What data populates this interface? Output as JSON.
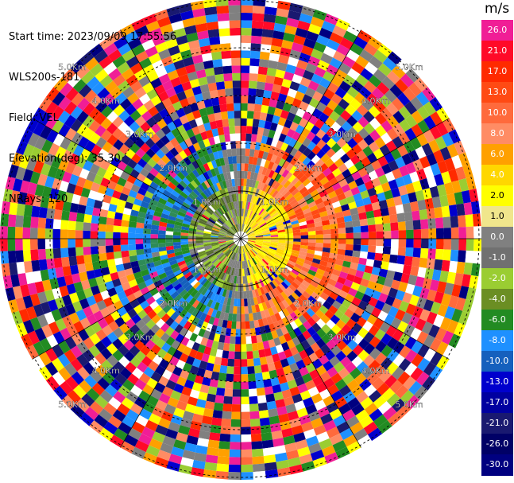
{
  "header": {
    "start_time": "Start time: 2023/09/09 17:55:56",
    "instrument": "WLS200s-181",
    "field": "Field: VEL",
    "elevation": "Elevation(deg): 35.30",
    "nrays": "NRays: 120"
  },
  "colorbar": {
    "unit": "m/s",
    "levels": [
      "26.0",
      "21.0",
      "17.0",
      "13.0",
      "10.0",
      "8.0",
      "6.0",
      "4.0",
      "2.0",
      "1.0",
      "0.0",
      "-1.0",
      "-2.0",
      "-4.0",
      "-6.0",
      "-8.0",
      "-10.0",
      "-13.0",
      "-17.0",
      "-21.0",
      "-26.0",
      "-30.0"
    ],
    "colors": [
      "#f01e96",
      "#ff0a28",
      "#ff2a00",
      "#ff4a14",
      "#ff6a3c",
      "#ff8c64",
      "#ffa000",
      "#ffd700",
      "#ffff00",
      "#f0e68c",
      "#808080",
      "#707070",
      "#9acd32",
      "#6b8e23",
      "#228b22",
      "#1e90ff",
      "#1560bd",
      "#0000cd",
      "#0000a0",
      "#191970",
      "#000066",
      "#000080"
    ]
  },
  "range_labels": [
    "1.0Km",
    "2.0Km",
    "3.0Km",
    "4.0Km",
    "5.0Km"
  ],
  "field_colors": {
    "pos_inner": [
      "#ffff00",
      "#ffea00",
      "#ffd700",
      "#ffd23c"
    ],
    "pos_outer": [
      "#ffa000",
      "#ff8c64",
      "#ff6a3c",
      "#ff4a14"
    ],
    "neg_inner": [
      "#9acd32",
      "#6b8e23",
      "#808080",
      "#556b2f"
    ],
    "neg_outer": [
      "#228b22",
      "#1e90ff",
      "#2e8b57",
      "#1560bd"
    ],
    "noise": [
      "#f01e96",
      "#ff0a28",
      "#ff2a00",
      "#ffff00",
      "#0000cd",
      "#000080",
      "#228b22",
      "#1e90ff",
      "#9acd32",
      "#ffa000",
      "#ff8c64",
      "#808080",
      "#ffffff",
      "#191970",
      "#ff6a3c"
    ]
  }
}
